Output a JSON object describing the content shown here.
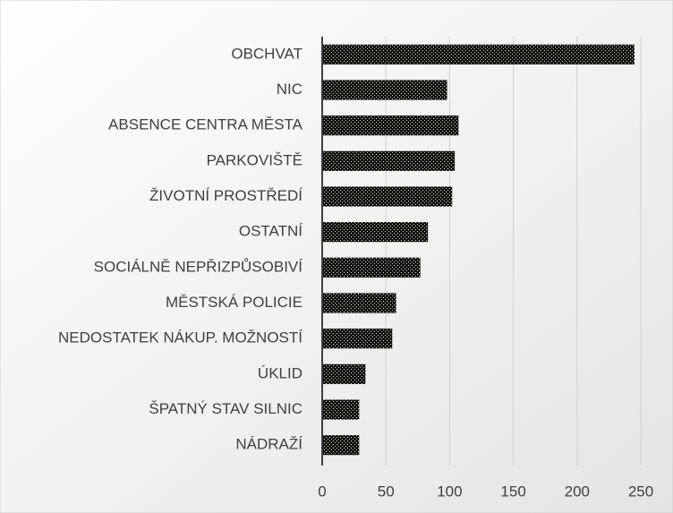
{
  "chart_data": {
    "type": "bar",
    "orientation": "horizontal",
    "categories": [
      "OBCHVAT",
      "NIC",
      "ABSENCE CENTRA MĚSTA",
      "PARKOVIŠTĚ",
      "ŽIVOTNÍ PROSTŘEDÍ",
      "OSTATNÍ",
      "SOCIÁLNĚ NEPŘIZPŮSOBIVÍ",
      "MĚSTSKÁ POLICIE",
      "NEDOSTATEK NÁKUP. MOŽNOSTÍ",
      "ÚKLID",
      "ŠPATNÝ STAV SILNIC",
      "NÁDRAŽÍ"
    ],
    "values": [
      245,
      98,
      107,
      104,
      102,
      83,
      77,
      58,
      55,
      34,
      29,
      29
    ],
    "color": "#111111",
    "xlim": [
      0,
      250
    ],
    "xticks": [
      0,
      50,
      100,
      150,
      200,
      250
    ],
    "grid": true
  }
}
